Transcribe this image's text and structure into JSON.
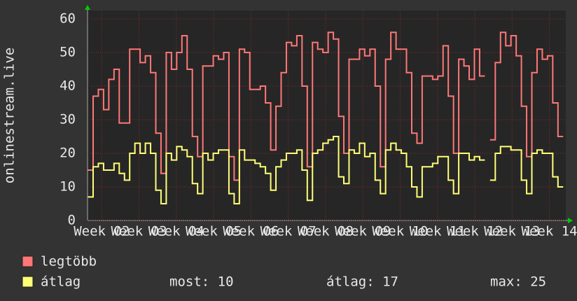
{
  "chart_data": {
    "type": "line",
    "step": true,
    "y_label": "onlinestream.live",
    "x": [
      1.63,
      1.77,
      1.91,
      2.05,
      2.19,
      2.33,
      2.47,
      2.61,
      2.75,
      2.89,
      3.03,
      3.17,
      3.31,
      3.45,
      3.59,
      3.73,
      3.87,
      4.01,
      4.15,
      4.29,
      4.43,
      4.57,
      4.71,
      4.85,
      4.99,
      5.13,
      5.27,
      5.41,
      5.55,
      5.69,
      5.83,
      5.97,
      6.11,
      6.25,
      6.39,
      6.53,
      6.67,
      6.81,
      6.95,
      7.09,
      7.23,
      7.37,
      7.51,
      7.65,
      7.79,
      7.93,
      8.07,
      8.21,
      8.35,
      8.49,
      8.63,
      8.77,
      8.91,
      9.05,
      9.19,
      9.33,
      9.47,
      9.61,
      9.75,
      9.89,
      10.03,
      10.17,
      10.31,
      10.45,
      10.59,
      10.73,
      10.87,
      11.01,
      11.15,
      11.29,
      11.43,
      11.57,
      11.71,
      11.85,
      11.99,
      12.13,
      12.27,
      12.41,
      12.55,
      12.69,
      12.83,
      12.97,
      13.11,
      13.25,
      13.39,
      13.53,
      13.67,
      13.81,
      13.95,
      14.09,
      14.23
    ],
    "series": [
      {
        "name": "legtöbb",
        "color": "#ff7777",
        "values": [
          15,
          37,
          39,
          33,
          42,
          45,
          29,
          29,
          51,
          51,
          47,
          49,
          44,
          26,
          14,
          50,
          45,
          50,
          55,
          45,
          25,
          19,
          46,
          46,
          49,
          48,
          50,
          19,
          12,
          51,
          50,
          39,
          39,
          40,
          35,
          21,
          34,
          44,
          53,
          52,
          55,
          40,
          16,
          53,
          51,
          50,
          56,
          54,
          31,
          20,
          48,
          48,
          51,
          49,
          51,
          40,
          16,
          48,
          56,
          51,
          51,
          44,
          26,
          23,
          43,
          43,
          42,
          43,
          52,
          37,
          20,
          48,
          46,
          42,
          51,
          43,
          null,
          24,
          47,
          56,
          52,
          55,
          49,
          34,
          19,
          44,
          51,
          48,
          49,
          35,
          25
        ]
      },
      {
        "name": "átlag",
        "color": "#ffff77",
        "values": [
          7,
          16,
          17,
          15,
          15,
          17,
          14,
          12,
          20,
          23,
          20,
          23,
          20,
          9,
          5,
          20,
          18,
          22,
          21,
          19,
          11,
          8,
          20,
          18,
          20,
          21,
          21,
          8,
          5,
          21,
          18,
          18,
          17,
          16,
          14,
          9,
          16,
          18,
          20,
          20,
          21,
          15,
          6,
          20,
          21,
          23,
          24,
          25,
          13,
          11,
          21,
          20,
          23,
          19,
          20,
          12,
          8,
          21,
          23,
          21,
          20,
          16,
          10,
          7,
          16,
          16,
          17,
          19,
          19,
          12,
          8,
          20,
          20,
          18,
          19,
          18,
          null,
          12,
          20,
          22,
          22,
          21,
          21,
          12,
          8,
          20,
          21,
          20,
          20,
          13,
          10
        ]
      }
    ],
    "legend_stats": [
      "most: 10",
      "átlag: 17",
      "max: 25"
    ],
    "xlim": [
      1.62,
      14.44
    ],
    "xticks": [
      {
        "value": 2,
        "label": "Week 02"
      },
      {
        "value": 3,
        "label": "Week 03"
      },
      {
        "value": 4,
        "label": "Week 04"
      },
      {
        "value": 5,
        "label": "Week 05"
      },
      {
        "value": 6,
        "label": "Week 06"
      },
      {
        "value": 7,
        "label": "Week 07"
      },
      {
        "value": 8,
        "label": "Week 08"
      },
      {
        "value": 9,
        "label": "Week 09"
      },
      {
        "value": 10,
        "label": "Week 10"
      },
      {
        "value": 11,
        "label": "Week 11"
      },
      {
        "value": 12,
        "label": "Week 12"
      },
      {
        "value": 13,
        "label": "Week 13"
      },
      {
        "value": 14,
        "label": "Week 14"
      }
    ],
    "ylim": [
      0,
      62.5
    ],
    "yticks": [
      0,
      10,
      20,
      30,
      40,
      50,
      60
    ],
    "grid": true
  }
}
